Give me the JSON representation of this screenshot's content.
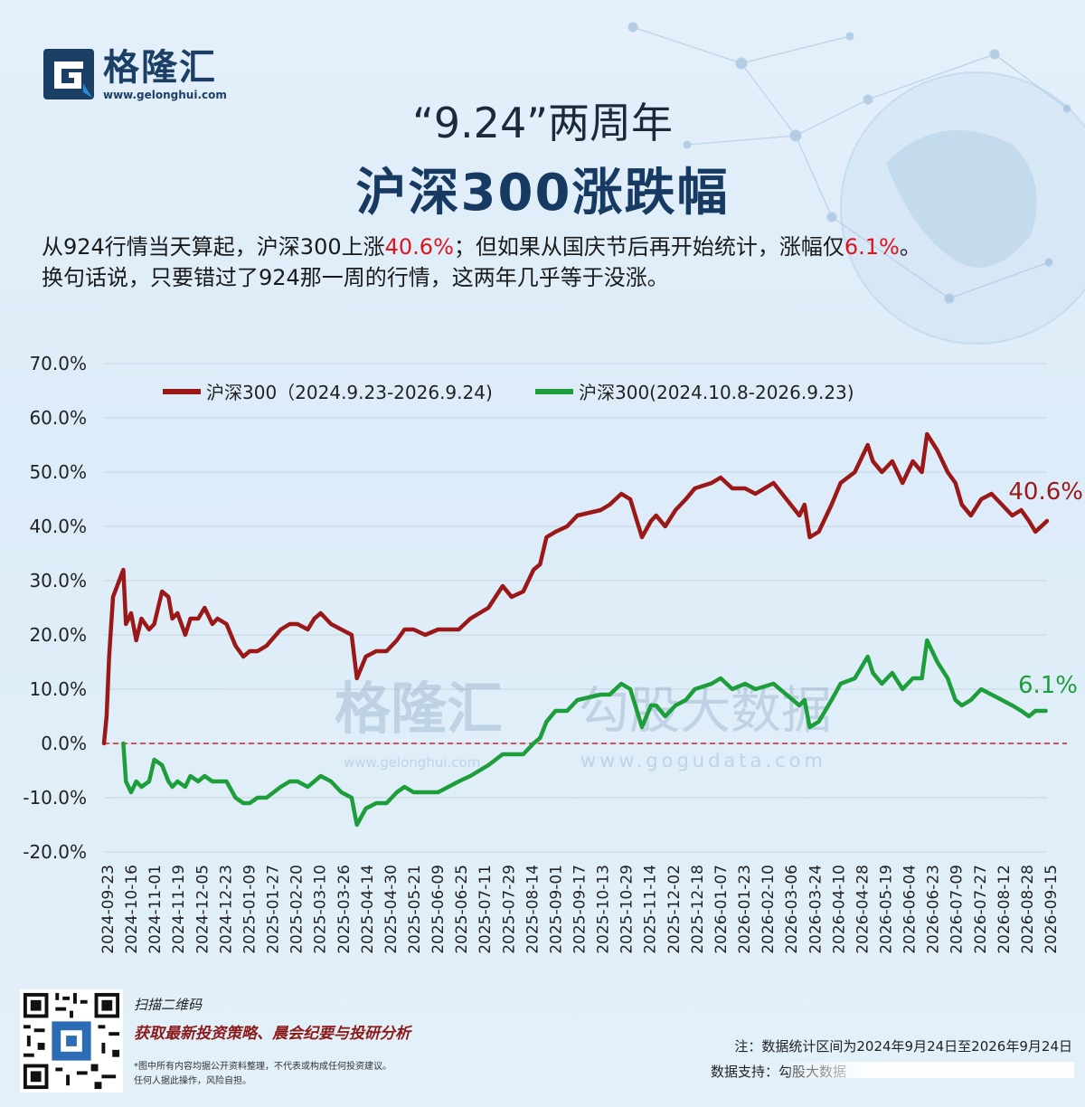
{
  "brand": {
    "name": "格隆汇",
    "url": "www.gelonghui.com"
  },
  "header": {
    "title_line1": "“9.24”两周年",
    "title_line2": "沪深300涨跌幅",
    "desc_line1_part1": "从924行情当天算起，沪深300上涨",
    "desc_line1_red1": "40.6%",
    "desc_line1_part2": "；但如果从国庆节后再开始统计，涨幅仅",
    "desc_line1_red2": "6.1%",
    "desc_line1_part3": "。",
    "desc_line2": "换句话说，只要错过了924那一周的行情，这两年几乎等于没涨。"
  },
  "watermark": {
    "brand": "格隆汇",
    "brand_url": "www.gelonghui.com",
    "data": "勾股大数据",
    "data_url": "www.gogudata.com"
  },
  "colors": {
    "series1": "#9b1818",
    "series2": "#1e9e3a",
    "zero_line": "#d32020",
    "title": "#163a62",
    "red_text": "#e0141e"
  },
  "chart_data": {
    "type": "line",
    "ylim": [
      -20,
      70
    ],
    "y_ticks": [
      "70.0%",
      "60.0%",
      "50.0%",
      "40.0%",
      "30.0%",
      "20.0%",
      "10.0%",
      "0.0%",
      "-10.0%",
      "-20.0%"
    ],
    "y_tick_values": [
      70,
      60,
      50,
      40,
      30,
      20,
      10,
      0,
      -10,
      -20
    ],
    "x_ticks": [
      "2024-09-23",
      "2024-10-16",
      "2024-11-01",
      "2024-11-19",
      "2024-12-05",
      "2024-12-23",
      "2025-01-09",
      "2025-01-27",
      "2025-02-20",
      "2025-03-10",
      "2025-03-26",
      "2025-04-14",
      "2025-04-30",
      "2025-05-21",
      "2025-06-09",
      "2025-06-25",
      "2025-07-11",
      "2025-07-29",
      "2025-08-14",
      "2025-09-01",
      "2025-09-17",
      "2025-10-13",
      "2025-10-29",
      "2025-11-14",
      "2025-12-02",
      "2025-12-18",
      "2026-01-07",
      "2026-01-23",
      "2026-02-10",
      "2026-03-06",
      "2026-03-24",
      "2026-04-10",
      "2026-04-28",
      "2026-05-19",
      "2026-06-04",
      "2026-06-23",
      "2026-07-09",
      "2026-07-27",
      "2026-08-12",
      "2026-08-28",
      "2026-09-15"
    ],
    "zero_line": {
      "value": 0,
      "style": "dashed"
    },
    "legend_position": "top",
    "series": [
      {
        "name": "沪深300（2024.9.23-2026.9.24)",
        "color": "#9b1818",
        "end_label": "40.6%",
        "x": [
          "2024-09-23",
          "2024-09-25",
          "2024-09-27",
          "2024-09-30",
          "2024-10-08",
          "2024-10-10",
          "2024-10-14",
          "2024-10-18",
          "2024-10-22",
          "2024-10-28",
          "2024-11-01",
          "2024-11-07",
          "2024-11-12",
          "2024-11-15",
          "2024-11-19",
          "2024-11-25",
          "2024-11-29",
          "2024-12-05",
          "2024-12-10",
          "2024-12-16",
          "2024-12-20",
          "2024-12-27",
          "2025-01-03",
          "2025-01-09",
          "2025-01-14",
          "2025-01-20",
          "2025-01-27",
          "2025-02-07",
          "2025-02-14",
          "2025-02-20",
          "2025-02-28",
          "2025-03-05",
          "2025-03-10",
          "2025-03-18",
          "2025-03-26",
          "2025-04-03",
          "2025-04-07",
          "2025-04-14",
          "2025-04-22",
          "2025-04-30",
          "2025-05-08",
          "2025-05-14",
          "2025-05-21",
          "2025-05-30",
          "2025-06-09",
          "2025-06-17",
          "2025-06-25",
          "2025-07-04",
          "2025-07-11",
          "2025-07-18",
          "2025-07-29",
          "2025-08-05",
          "2025-08-14",
          "2025-08-22",
          "2025-08-27",
          "2025-09-01",
          "2025-09-08",
          "2025-09-17",
          "2025-09-25",
          "2025-10-13",
          "2025-10-20",
          "2025-10-29",
          "2025-11-05",
          "2025-11-14",
          "2025-11-21",
          "2025-11-25",
          "2025-12-02",
          "2025-12-10",
          "2025-12-18",
          "2025-12-25",
          "2026-01-07",
          "2026-01-14",
          "2026-01-23",
          "2026-02-02",
          "2026-02-10",
          "2026-02-24",
          "2026-03-06",
          "2026-03-16",
          "2026-03-20",
          "2026-03-24",
          "2026-03-31",
          "2026-04-10",
          "2026-04-17",
          "2026-04-28",
          "2026-05-08",
          "2026-05-12",
          "2026-05-19",
          "2026-05-27",
          "2026-06-04",
          "2026-06-12",
          "2026-06-19",
          "2026-06-23",
          "2026-07-01",
          "2026-07-09",
          "2026-07-15",
          "2026-07-20",
          "2026-07-27",
          "2026-08-04",
          "2026-08-12",
          "2026-08-20",
          "2026-08-28",
          "2026-09-04",
          "2026-09-10",
          "2026-09-15",
          "2026-09-24"
        ],
        "y": [
          0,
          5,
          16,
          27,
          32,
          22,
          24,
          19,
          23,
          21,
          22,
          28,
          27,
          23,
          24,
          20,
          23,
          23,
          25,
          22,
          23,
          22,
          18,
          16,
          17,
          17,
          18,
          21,
          22,
          22,
          21,
          23,
          24,
          22,
          21,
          20,
          12,
          16,
          17,
          17,
          19,
          21,
          21,
          20,
          21,
          21,
          21,
          23,
          24,
          25,
          29,
          27,
          28,
          32,
          33,
          38,
          39,
          40,
          42,
          43,
          44,
          46,
          45,
          38,
          41,
          42,
          40,
          43,
          45,
          47,
          48,
          49,
          47,
          47,
          46,
          48,
          45,
          42,
          44,
          38,
          39,
          44,
          48,
          50,
          55,
          52,
          50,
          52,
          48,
          52,
          50,
          57,
          54,
          50,
          48,
          44,
          42,
          45,
          46,
          44,
          42,
          43,
          41,
          39,
          41
        ]
      },
      {
        "name": "沪深300(2024.10.8-2026.9.23)",
        "color": "#1e9e3a",
        "end_label": "6.1%",
        "x": [
          "2024-10-08",
          "2024-10-10",
          "2024-10-14",
          "2024-10-18",
          "2024-10-22",
          "2024-10-28",
          "2024-11-01",
          "2024-11-07",
          "2024-11-12",
          "2024-11-15",
          "2024-11-19",
          "2024-11-25",
          "2024-11-29",
          "2024-12-05",
          "2024-12-10",
          "2024-12-16",
          "2024-12-20",
          "2024-12-27",
          "2025-01-03",
          "2025-01-09",
          "2025-01-14",
          "2025-01-20",
          "2025-01-27",
          "2025-02-07",
          "2025-02-14",
          "2025-02-20",
          "2025-02-28",
          "2025-03-05",
          "2025-03-10",
          "2025-03-18",
          "2025-03-26",
          "2025-04-03",
          "2025-04-07",
          "2025-04-14",
          "2025-04-22",
          "2025-04-30",
          "2025-05-08",
          "2025-05-14",
          "2025-05-21",
          "2025-05-30",
          "2025-06-09",
          "2025-06-17",
          "2025-06-25",
          "2025-07-04",
          "2025-07-11",
          "2025-07-18",
          "2025-07-29",
          "2025-08-05",
          "2025-08-14",
          "2025-08-22",
          "2025-08-27",
          "2025-09-01",
          "2025-09-08",
          "2025-09-17",
          "2025-09-25",
          "2025-10-13",
          "2025-10-20",
          "2025-10-29",
          "2025-11-05",
          "2025-11-14",
          "2025-11-21",
          "2025-11-25",
          "2025-12-02",
          "2025-12-10",
          "2025-12-18",
          "2025-12-25",
          "2026-01-07",
          "2026-01-14",
          "2026-01-23",
          "2026-02-02",
          "2026-02-10",
          "2026-02-24",
          "2026-03-06",
          "2026-03-16",
          "2026-03-20",
          "2026-03-24",
          "2026-03-31",
          "2026-04-10",
          "2026-04-17",
          "2026-04-28",
          "2026-05-08",
          "2026-05-12",
          "2026-05-19",
          "2026-05-27",
          "2026-06-04",
          "2026-06-12",
          "2026-06-19",
          "2026-06-23",
          "2026-07-01",
          "2026-07-09",
          "2026-07-15",
          "2026-07-20",
          "2026-07-27",
          "2026-08-04",
          "2026-08-12",
          "2026-08-20",
          "2026-08-28",
          "2026-09-04",
          "2026-09-10",
          "2026-09-15",
          "2026-09-23"
        ],
        "y": [
          0,
          -7,
          -9,
          -7,
          -8,
          -7,
          -3,
          -4,
          -7,
          -8,
          -7,
          -8,
          -6,
          -7,
          -6,
          -7,
          -7,
          -7,
          -10,
          -11,
          -11,
          -10,
          -10,
          -8,
          -7,
          -7,
          -8,
          -7,
          -6,
          -7,
          -9,
          -10,
          -15,
          -12,
          -11,
          -11,
          -9,
          -8,
          -9,
          -9,
          -9,
          -8,
          -7,
          -6,
          -5,
          -4,
          -2,
          -2,
          -2,
          0,
          1,
          4,
          6,
          6,
          8,
          9,
          9,
          11,
          10,
          3,
          7,
          7,
          5,
          7,
          8,
          10,
          11,
          12,
          10,
          11,
          10,
          11,
          9,
          7,
          8,
          3,
          4,
          8,
          11,
          12,
          16,
          13,
          11,
          13,
          10,
          12,
          12,
          19,
          15,
          12,
          8,
          7,
          8,
          10,
          9,
          8,
          7,
          6,
          5,
          6,
          6
        ]
      }
    ]
  },
  "footer": {
    "scan_label": "扫描二维码",
    "scan_desc": "获取最新投资策略、晨会纪要与投研分析",
    "disclaimer_line1": "*图中所有内容均据公开资料整理，不代表或构成任何投资建议。",
    "disclaimer_line2": "任何人据此操作，风险自担。",
    "note": "注：数据统计区间为2024年9月24日至2026年9月24日",
    "source": "数据支持：勾股大数据"
  }
}
